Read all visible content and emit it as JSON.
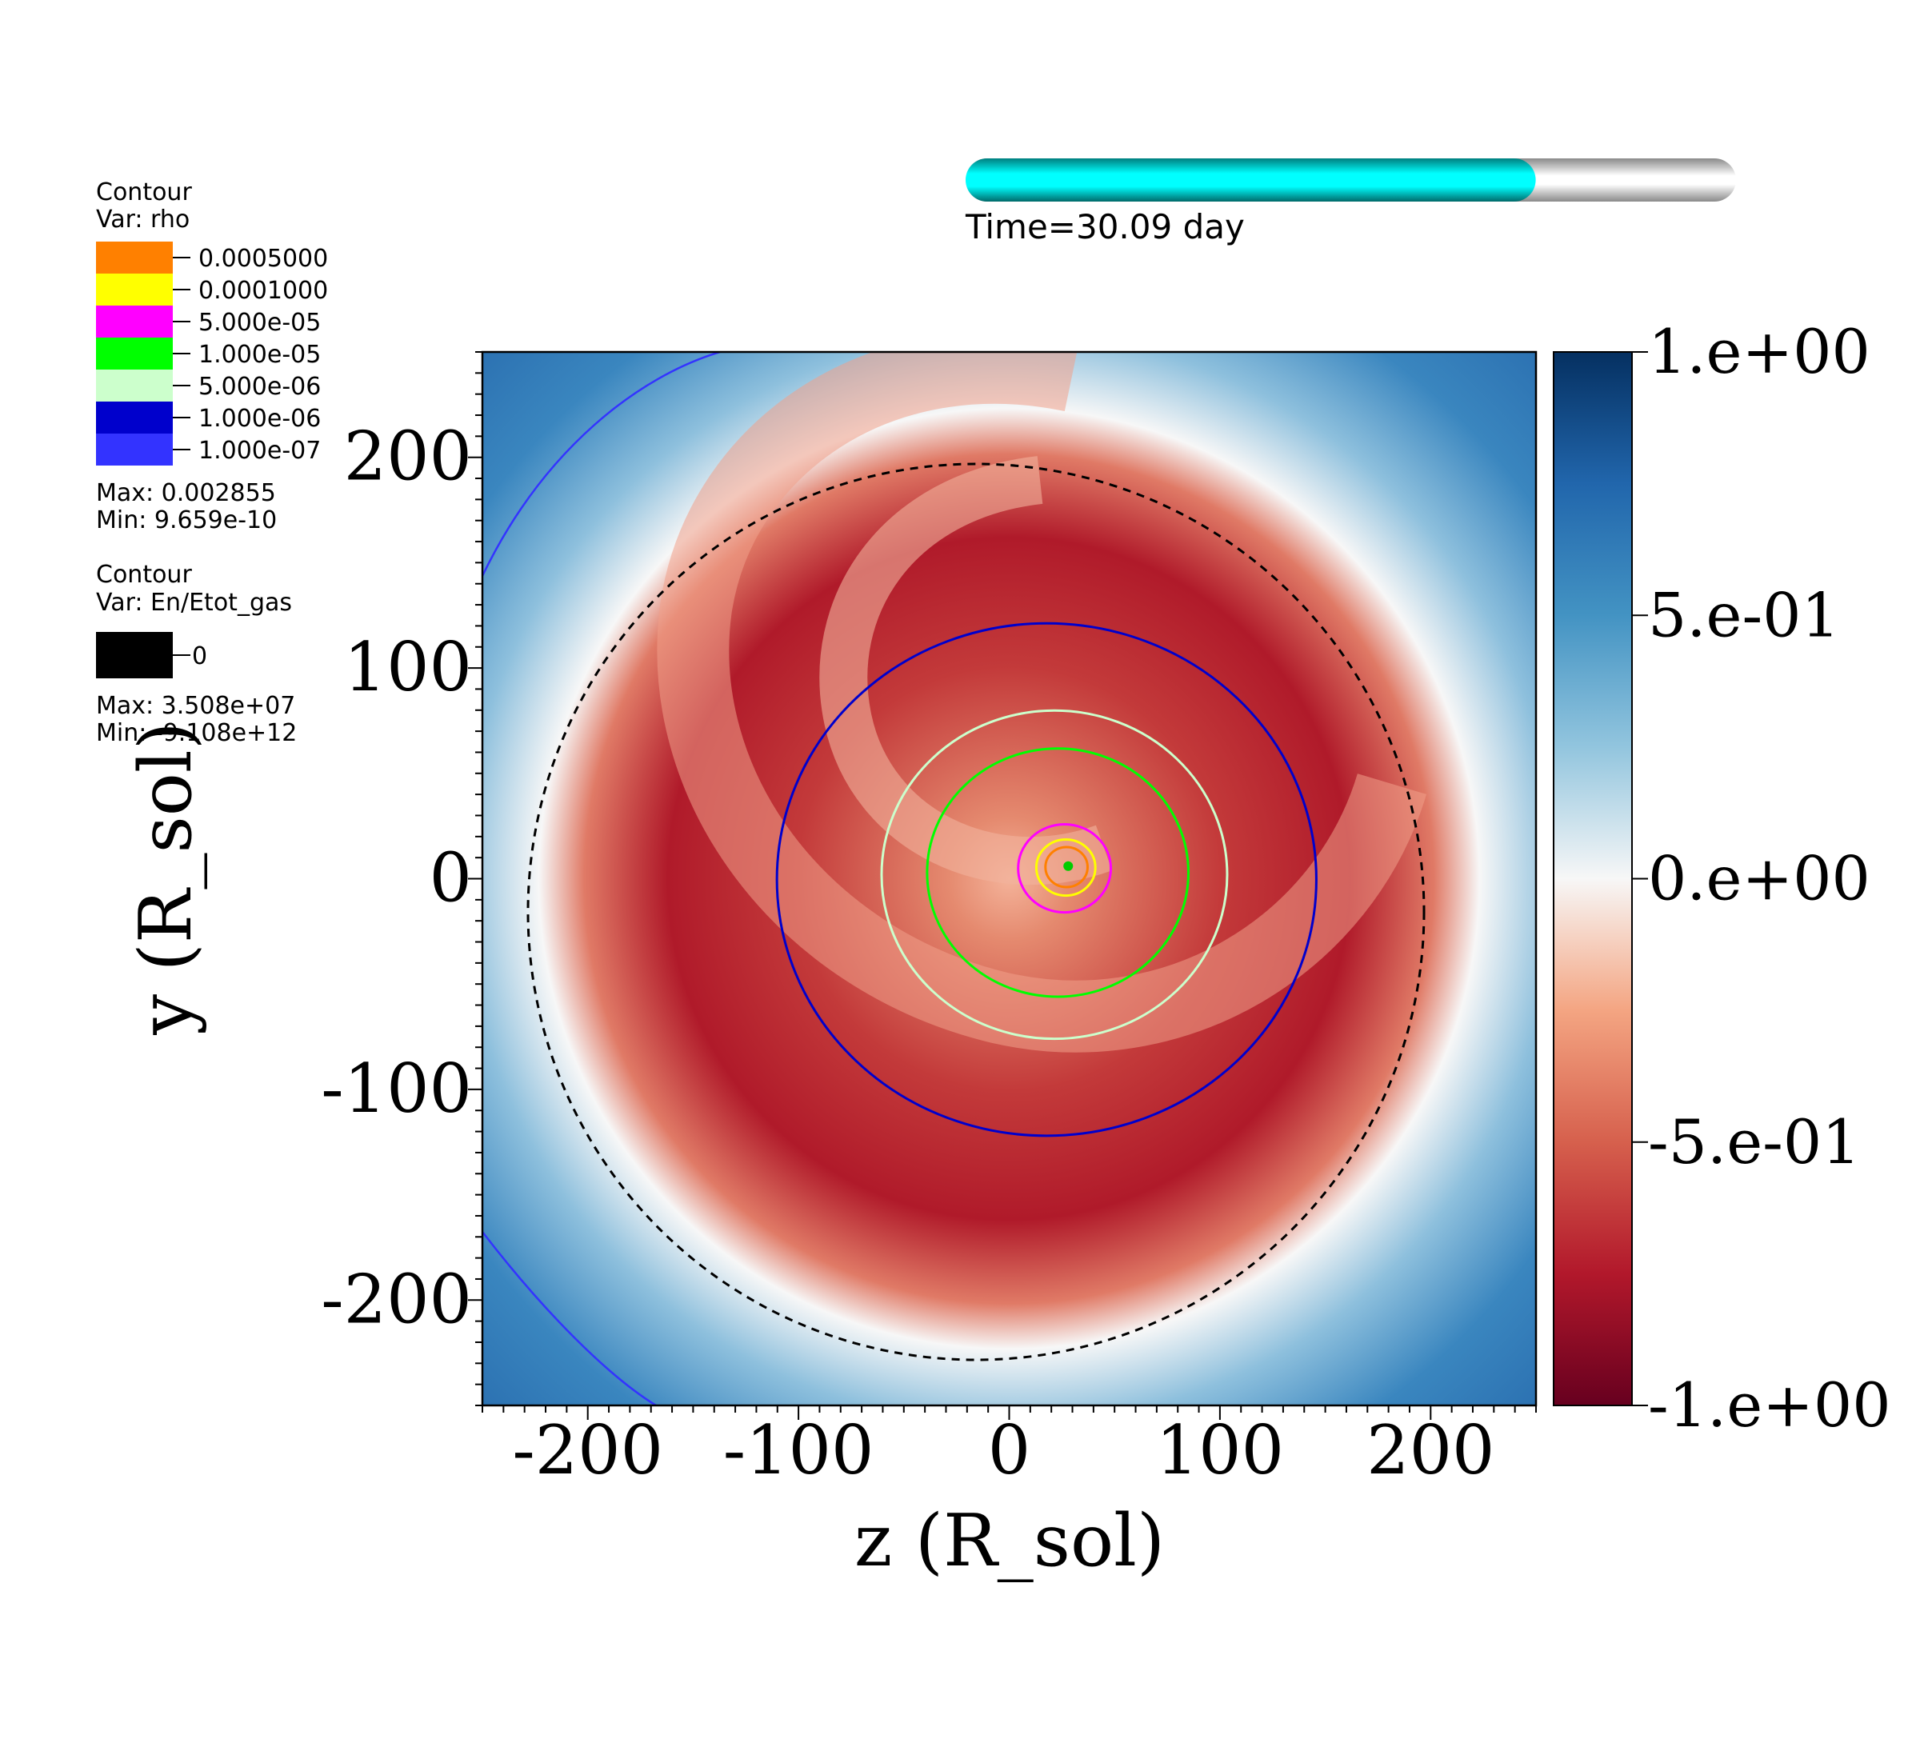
{
  "chart_data": {
    "type": "heatmap",
    "xlabel": "z (R_sol)",
    "ylabel": "y (R_sol)",
    "xlim": [
      -250,
      250
    ],
    "ylim": [
      -250,
      250
    ],
    "x_ticks": [
      "-200",
      "-100",
      "0",
      "100",
      "200"
    ],
    "x_tick_values": [
      -200,
      -100,
      0,
      100,
      200
    ],
    "y_ticks": [
      "200",
      "100",
      "0",
      "-100",
      "-200"
    ],
    "y_tick_values": [
      200,
      100,
      0,
      -100,
      -200
    ],
    "colorbar": {
      "range": [
        -1,
        1
      ],
      "labels": [
        "1.e+00",
        "5.e-01",
        "0.e+00",
        "-5.e-01",
        "-1.e+00"
      ],
      "label_values": [
        1,
        0.5,
        0,
        -0.5,
        -1
      ],
      "colors": [
        "#053061",
        "#2166ac",
        "#4393c3",
        "#92c5de",
        "#f7f7f7",
        "#f4a582",
        "#d6604d",
        "#b2182b",
        "#67001f"
      ]
    },
    "density_contours": [
      {
        "r": 10,
        "level": "0.0005000"
      },
      {
        "r": 14,
        "level": "0.0001000"
      },
      {
        "r": 22,
        "level": "5.000e-05"
      },
      {
        "r": 62,
        "level": "1.000e-05"
      },
      {
        "r": 82,
        "level": "5.000e-06"
      },
      {
        "r": 128,
        "level": "1.000e-06"
      }
    ]
  },
  "legend_rho": {
    "title": "Contour",
    "var": "Var: rho",
    "entries": [
      {
        "label": "0.0005000",
        "color": "#ff8000"
      },
      {
        "label": "0.0001000",
        "color": "#ffff00"
      },
      {
        "label": "5.000e-05",
        "color": "#ff00ff"
      },
      {
        "label": "1.000e-05",
        "color": "#00ff00"
      },
      {
        "label": "5.000e-06",
        "color": "#ccffcc"
      },
      {
        "label": "1.000e-06",
        "color": "#0000cc"
      },
      {
        "label": "1.000e-07",
        "color": "#3333ff"
      }
    ],
    "max": "Max:  0.002855",
    "min": "Min:  9.659e-10"
  },
  "legend_en": {
    "title": "Contour",
    "var": "Var: En/Etot_gas",
    "entries": [
      {
        "label": "0",
        "color": "#000000"
      }
    ],
    "max": "Max:  3.508e+07",
    "min": "Min: -9.108e+12"
  },
  "time_bar": {
    "label": "Time=30.09 day",
    "progress": 0.74,
    "fill_color": "#00ffff"
  }
}
